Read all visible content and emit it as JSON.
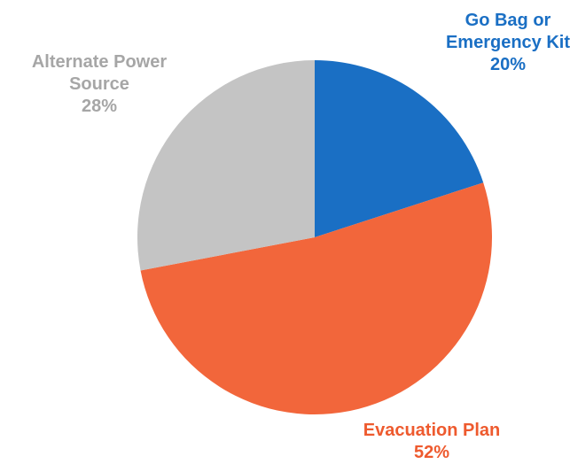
{
  "chart_data": {
    "type": "pie",
    "title": "",
    "slices": [
      {
        "label_lines": [
          "Go Bag or",
          "Emergency Kit"
        ],
        "value": 20,
        "value_label": "20%",
        "color": "#1a6fc4",
        "label_color": "#1a6fc4"
      },
      {
        "label_lines": [
          "Evacuation Plan"
        ],
        "value": 52,
        "value_label": "52%",
        "color": "#f2663b",
        "label_color": "#ee5a2e"
      },
      {
        "label_lines": [
          "Alternate Power",
          "Source"
        ],
        "value": 28,
        "value_label": "28%",
        "color": "#c4c4c4",
        "label_color": "#a6a6a6"
      }
    ],
    "start_angle_deg": 0,
    "direction": "clockwise",
    "legend": "none",
    "data_labels": "outside"
  }
}
